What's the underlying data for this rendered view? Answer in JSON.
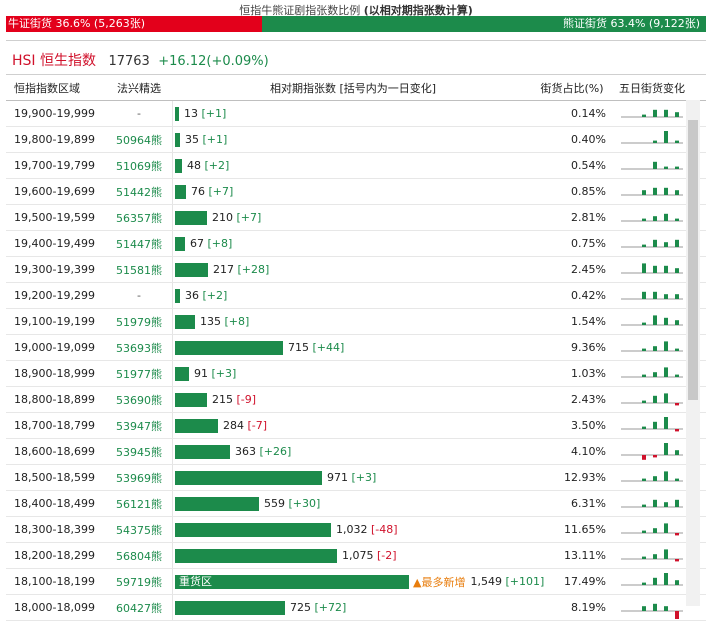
{
  "caption": {
    "prefix": "恒指牛熊证剧指张数比例",
    "suffix": "(以相对期指张数计算)"
  },
  "ratio": {
    "bull_label": "牛证街货 36.6% (5,263张)",
    "bear_label": "熊证街货 63.4% (9,122张)",
    "bull_fraction": 0.366,
    "color_bull": "#e3001b",
    "color_bear": "#1c8b4b"
  },
  "index": {
    "code": "HSI",
    "name": "恒生指数",
    "point": "17763",
    "change": "+16.12(+0.09%)"
  },
  "table": {
    "headers": {
      "range": "恒指指数区域",
      "pick": "法兴精选",
      "count": "相对期指张数 [括号内为一日变化]",
      "pct": "街货占比(%)",
      "spark": "五日街货变化"
    },
    "scale_max": 1549,
    "rows": [
      {
        "range": "19,900-19,999",
        "pick": "-",
        "count": 13,
        "count_label": "13",
        "change": "[+1]",
        "pct": "0.14%",
        "spark": [
          0,
          1,
          3,
          3,
          2
        ]
      },
      {
        "range": "19,800-19,899",
        "pick": "50964熊",
        "count": 35,
        "count_label": "35",
        "change": "[+1]",
        "pct": "0.40%",
        "spark": [
          0,
          0,
          1,
          5,
          1
        ]
      },
      {
        "range": "19,700-19,799",
        "pick": "51069熊",
        "count": 48,
        "count_label": "48",
        "change": "[+2]",
        "pct": "0.54%",
        "spark": [
          0,
          0,
          3,
          1,
          1
        ]
      },
      {
        "range": "19,600-19,699",
        "pick": "51442熊",
        "count": 76,
        "count_label": "76",
        "change": "[+7]",
        "pct": "0.85%",
        "spark": [
          0,
          2,
          3,
          3,
          2
        ]
      },
      {
        "range": "19,500-19,599",
        "pick": "56357熊",
        "count": 210,
        "count_label": "210",
        "change": "[+7]",
        "pct": "2.81%",
        "spark": [
          0,
          1,
          2,
          3,
          1
        ]
      },
      {
        "range": "19,400-19,499",
        "pick": "51447熊",
        "count": 67,
        "count_label": "67",
        "change": "[+8]",
        "pct": "0.75%",
        "spark": [
          0,
          1,
          3,
          2,
          3
        ]
      },
      {
        "range": "19,300-19,399",
        "pick": "51581熊",
        "count": 217,
        "count_label": "217",
        "change": "[+28]",
        "pct": "2.45%",
        "spark": [
          0,
          4,
          3,
          3,
          2
        ]
      },
      {
        "range": "19,200-19,299",
        "pick": "-",
        "count": 36,
        "count_label": "36",
        "change": "[+2]",
        "pct": "0.42%",
        "spark": [
          0,
          3,
          3,
          2,
          2
        ]
      },
      {
        "range": "19,100-19,199",
        "pick": "51979熊",
        "count": 135,
        "count_label": "135",
        "change": "[+8]",
        "pct": "1.54%",
        "spark": [
          0,
          1,
          4,
          3,
          2
        ]
      },
      {
        "range": "19,000-19,099",
        "pick": "53693熊",
        "count": 715,
        "count_label": "715",
        "change": "[+44]",
        "pct": "9.36%",
        "spark": [
          0,
          1,
          2,
          4,
          1
        ]
      },
      {
        "range": "18,900-18,999",
        "pick": "51977熊",
        "count": 91,
        "count_label": "91",
        "change": "[+3]",
        "pct": "1.03%",
        "spark": [
          0,
          1,
          2,
          4,
          1
        ]
      },
      {
        "range": "18,800-18,899",
        "pick": "53690熊",
        "count": 215,
        "count_label": "215",
        "change": "[-9]",
        "pct": "2.43%",
        "spark": [
          0,
          1,
          3,
          4,
          -1
        ]
      },
      {
        "range": "18,700-18,799",
        "pick": "53947熊",
        "count": 284,
        "count_label": "284",
        "change": "[-7]",
        "pct": "3.50%",
        "spark": [
          0,
          1,
          3,
          5,
          -1
        ]
      },
      {
        "range": "18,600-18,699",
        "pick": "53945熊",
        "count": 363,
        "count_label": "363",
        "change": "[+26]",
        "pct": "4.10%",
        "spark": [
          0,
          -2,
          -1,
          5,
          2
        ]
      },
      {
        "range": "18,500-18,599",
        "pick": "53969熊",
        "count": 971,
        "count_label": "971",
        "change": "[+3]",
        "pct": "12.93%",
        "spark": [
          0,
          1,
          2,
          4,
          1
        ]
      },
      {
        "range": "18,400-18,499",
        "pick": "56121熊",
        "count": 559,
        "count_label": "559",
        "change": "[+30]",
        "pct": "6.31%",
        "spark": [
          0,
          1,
          3,
          2,
          3
        ]
      },
      {
        "range": "18,300-18,399",
        "pick": "54375熊",
        "count": 1032,
        "count_label": "1,032",
        "change": "[-48]",
        "pct": "11.65%",
        "spark": [
          0,
          1,
          2,
          4,
          -1
        ]
      },
      {
        "range": "18,200-18,299",
        "pick": "56804熊",
        "count": 1075,
        "count_label": "1,075",
        "change": "[-2]",
        "pct": "13.11%",
        "spark": [
          0,
          1,
          2,
          4,
          -1
        ]
      },
      {
        "range": "18,100-18,199",
        "pick": "59719熊",
        "count": 1549,
        "count_label": "1,549",
        "change": "[+101]",
        "pct": "17.49%",
        "spark": [
          0,
          1,
          3,
          5,
          2
        ],
        "zone_label": "重货区",
        "note": "▲最多新增"
      },
      {
        "range": "18,000-18,099",
        "pick": "60427熊",
        "count": 725,
        "count_label": "725",
        "change": "[+72]",
        "pct": "8.19%",
        "spark": [
          0,
          2,
          3,
          2,
          -5
        ]
      }
    ]
  }
}
